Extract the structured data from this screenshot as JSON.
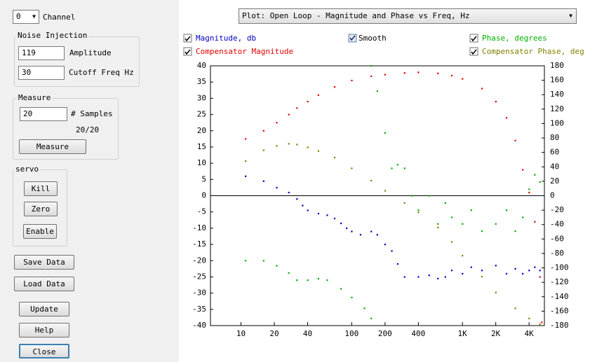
{
  "controls": {
    "channel": {
      "value": "0",
      "label": "Channel"
    },
    "noise_injection": {
      "title": "Noise Injection",
      "amplitude": {
        "value": "119",
        "label": "Amplitude"
      },
      "cutoff": {
        "value": "30",
        "label": "Cutoff Freq Hz"
      }
    },
    "measure": {
      "title": "Measure",
      "samples": {
        "value": "20",
        "label": "# Samples"
      },
      "progress": "20/20",
      "button": "Measure"
    },
    "servo": {
      "title": "servo",
      "buttons": [
        "Kill",
        "Zero",
        "Enable"
      ]
    },
    "buttons": [
      "Save Data",
      "Load Data",
      "Update",
      "Help",
      "Close"
    ],
    "plot_select": "Plot: Open Loop - Magnitude and Phase vs Freq, Hz",
    "smooth": "Smooth"
  },
  "chart_data": {
    "type": "scatter",
    "xscale": "log",
    "xlim": [
      5.3,
      5500
    ],
    "xticks": [
      10,
      20,
      40,
      100,
      200,
      400,
      {
        "value": 1000,
        "label": "1K"
      },
      {
        "value": 2000,
        "label": "2K"
      },
      {
        "value": 4000,
        "label": "4K"
      }
    ],
    "ylim": [
      -40,
      40
    ],
    "yticks": [
      -40,
      -35,
      -30,
      -25,
      -20,
      -15,
      -10,
      -5,
      0,
      5,
      10,
      15,
      20,
      25,
      30,
      35,
      40
    ],
    "y2lim": [
      -180,
      180
    ],
    "y2ticks": [
      -180,
      -160,
      -140,
      -120,
      -100,
      -80,
      -60,
      -40,
      -20,
      0,
      20,
      40,
      60,
      80,
      100,
      120,
      140,
      160,
      180
    ],
    "series": [
      {
        "name": "Magnitude, db",
        "color": "#0000c0",
        "x": [
          11,
          16,
          21,
          27,
          32,
          36,
          40,
          50,
          60,
          70,
          80,
          90,
          100,
          120,
          150,
          170,
          200,
          230,
          260,
          300,
          400,
          500,
          600,
          700,
          800,
          1000,
          1200,
          1500,
          2000,
          2500,
          3000,
          3500,
          4000,
          4500,
          5000
        ],
        "values": [
          6,
          4.5,
          2.5,
          1,
          -1,
          -3,
          -4.5,
          -5.5,
          -6,
          -7,
          -8.5,
          -10,
          -11,
          -12,
          -11,
          -12,
          -15,
          -17,
          -21,
          -25,
          -25,
          -24.5,
          -25.5,
          -25,
          -23,
          -24,
          -22,
          -23,
          -21.5,
          -24,
          -22.5,
          -24,
          -23,
          -22,
          -23
        ]
      },
      {
        "name": "Compensator Magnitude",
        "color": "#e00000",
        "x": [
          11,
          16,
          21,
          27,
          32,
          40,
          50,
          70,
          100,
          150,
          200,
          300,
          400,
          600,
          800,
          1000,
          1500,
          2000,
          2500,
          3000,
          3500,
          4000,
          4500,
          5000,
          5200
        ],
        "values": [
          17.5,
          20,
          22.5,
          25,
          27,
          29,
          31,
          33.5,
          35.5,
          36.8,
          37.3,
          37.8,
          38,
          37.7,
          37,
          36,
          33,
          29,
          24,
          17,
          8,
          1,
          -8,
          -25,
          -39
        ]
      },
      {
        "name": "Phase, degrees",
        "color": "#00b000",
        "axis": "y2",
        "x": [
          11,
          16,
          21,
          27,
          32,
          40,
          50,
          60,
          80,
          100,
          130,
          150,
          150,
          170,
          200,
          230,
          260,
          300,
          350,
          400,
          500,
          600,
          700,
          800,
          1000,
          1200,
          1500,
          2000,
          2500,
          3000,
          3500,
          4000,
          4500,
          5000
        ],
        "values": [
          -90,
          -90,
          -97,
          -107,
          -117,
          -117,
          -115,
          -117,
          -129,
          -141,
          -156,
          -170,
          180,
          145,
          87,
          38,
          43,
          38,
          0,
          -20,
          0,
          -39,
          -10,
          -30,
          -39,
          -20,
          -49,
          -39,
          -20,
          -49,
          -30,
          9,
          29,
          19
        ]
      },
      {
        "name": "Compensator Phase, deg",
        "color": "#808000",
        "axis": "y2",
        "x": [
          11,
          16,
          21,
          27,
          32,
          40,
          50,
          70,
          100,
          150,
          200,
          300,
          400,
          600,
          800,
          1000,
          1500,
          2000,
          3000,
          4000,
          5000
        ],
        "values": [
          48,
          63,
          69,
          72,
          71,
          67,
          62,
          53,
          38,
          21,
          7,
          -10,
          -23,
          -44,
          -64,
          -83,
          -112,
          -134,
          -156,
          -170,
          -178
        ]
      }
    ]
  }
}
